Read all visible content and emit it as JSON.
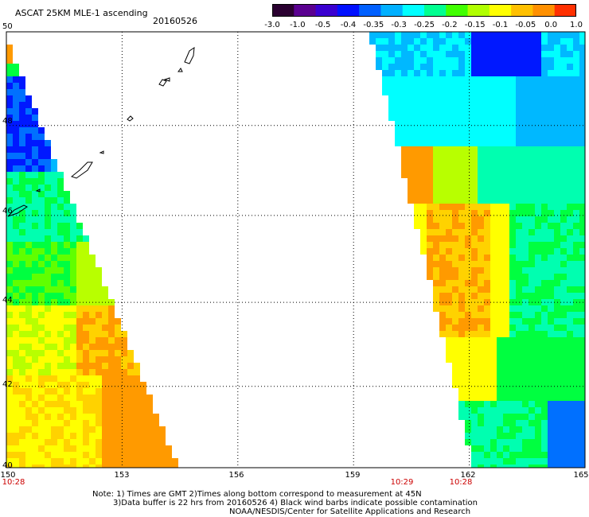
{
  "header": {
    "title": "ASCAT 25KM MLE-1 ascending",
    "date": "20160526"
  },
  "colorbar": {
    "ticks": [
      "-3.0",
      "-1.0",
      "-0.5",
      "-0.4",
      "-0.35",
      "-0.3",
      "-0.25",
      "-0.2",
      "-0.15",
      "-0.1",
      "-0.05",
      "0.0",
      "1.0"
    ],
    "colors": [
      "#2a0030",
      "#5a0090",
      "#3a00d0",
      "#0010ff",
      "#0060ff",
      "#00b0ff",
      "#00ffff",
      "#00ff90",
      "#40ff00",
      "#b0ff00",
      "#ffff00",
      "#ffc000",
      "#ff9000",
      "#ff3000"
    ]
  },
  "axes": {
    "lat_ticks": [
      "50",
      "48",
      "46",
      "44",
      "42",
      "40"
    ],
    "lon_ticks": [
      "150",
      "153",
      "156",
      "159",
      "162",
      "165"
    ],
    "lat_range": [
      40,
      50
    ],
    "lon_range": [
      150,
      165
    ]
  },
  "swath_times": [
    {
      "lon": 150,
      "label": "10:28"
    },
    {
      "lon": 161.4,
      "label": "10:29"
    },
    {
      "lon": 162.1,
      "label": "10:28"
    }
  ],
  "notes": {
    "line1": "Note: 1) Times are GMT 2)Times along bottom correspond to measurement at 45N",
    "line2": "3)Data buffer is 22 hrs from 20160526 4) Black wind barbs indicate possible contamination",
    "line3": "NOAA/NESDIS/Center for Satellite Applications and Research"
  }
}
